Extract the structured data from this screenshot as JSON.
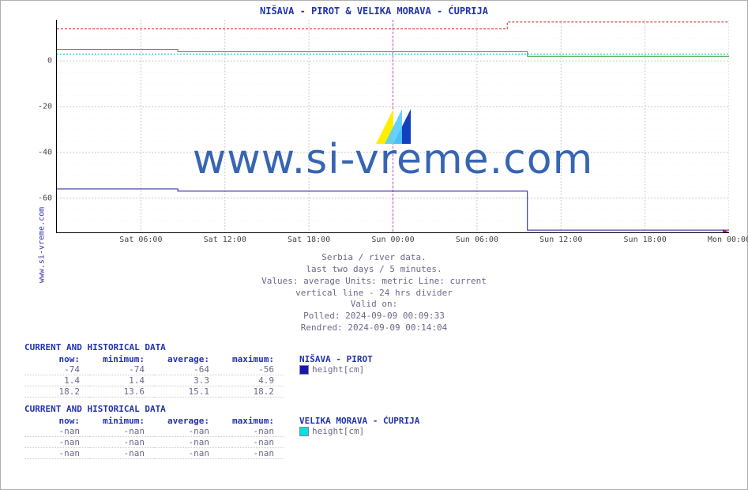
{
  "title": "NIŠAVA -  PIROT &  VELIKA MORAVA -  ĆUPRIJA",
  "source_label": "www.si-vreme.com",
  "watermark": "www.si-vreme.com",
  "chart": {
    "type": "line",
    "background_color": "#ffffff",
    "grid_color_major": "#cccccc",
    "grid_color_minor": "#e6e6e6",
    "grid_dash": "2,2",
    "axis_color": "#000000",
    "ylim": [
      -75,
      18
    ],
    "yticks": [
      -60,
      -40,
      -20,
      0
    ],
    "divider_x": 0.5,
    "divider_color": "#cc44cc",
    "arrow_color": "#cc2222",
    "xticks": [
      {
        "pos": 0.125,
        "label": "Sat 06:00"
      },
      {
        "pos": 0.25,
        "label": "Sat 12:00"
      },
      {
        "pos": 0.375,
        "label": "Sat 18:00"
      },
      {
        "pos": 0.5,
        "label": "Sun 00:00"
      },
      {
        "pos": 0.625,
        "label": "Sun 06:00"
      },
      {
        "pos": 0.75,
        "label": "Sun 12:00"
      },
      {
        "pos": 0.875,
        "label": "Sun 18:00"
      },
      {
        "pos": 1.0,
        "label": "Mon 00:00"
      }
    ],
    "series": [
      {
        "name": "red-upper",
        "color": "#cc2222",
        "width": 1,
        "dash": "3,2",
        "points": [
          [
            0,
            14
          ],
          [
            0.67,
            14
          ],
          [
            0.67,
            17
          ],
          [
            1.0,
            17
          ]
        ]
      },
      {
        "name": "green-mid",
        "color": "#2aa02a",
        "width": 1,
        "points": [
          [
            0,
            5
          ],
          [
            0.18,
            5
          ],
          [
            0.18,
            4
          ],
          [
            0.7,
            4
          ],
          [
            0.7,
            2
          ],
          [
            1.0,
            2
          ]
        ]
      },
      {
        "name": "cyan-mid",
        "color": "#00b7b7",
        "width": 1,
        "dash": "2,2",
        "points": [
          [
            0,
            3
          ],
          [
            1.0,
            3
          ]
        ]
      },
      {
        "name": "nisava-height",
        "color": "#1818aa",
        "width": 1,
        "points": [
          [
            0,
            -56
          ],
          [
            0.18,
            -56
          ],
          [
            0.18,
            -57
          ],
          [
            0.7,
            -57
          ],
          [
            0.7,
            -74
          ],
          [
            1.0,
            -74
          ]
        ]
      }
    ]
  },
  "description": {
    "l1": "Serbia / river data.",
    "l2": "last two days / 5 minutes.",
    "l3": "Values: average  Units: metric  Line: current",
    "l4": "vertical line - 24 hrs  divider",
    "l5": "Valid on:",
    "l6": "Polled: 2024-09-09 00:09:33",
    "l7": "Rendred: 2024-09-09 00:14:04"
  },
  "tables": [
    {
      "title": "CURRENT AND HISTORICAL DATA",
      "columns": [
        "now:",
        "minimum:",
        "average:",
        "maximum:"
      ],
      "series_name": "NIŠAVA -  PIROT",
      "rows": [
        {
          "cells": [
            "-74",
            "-74",
            "-64",
            "-56"
          ],
          "swatch": "#1818aa",
          "label": "height[cm]"
        },
        {
          "cells": [
            "1.4",
            "1.4",
            "3.3",
            "4.9"
          ]
        },
        {
          "cells": [
            "18.2",
            "13.6",
            "15.1",
            "18.2"
          ]
        }
      ]
    },
    {
      "title": "CURRENT AND HISTORICAL DATA",
      "columns": [
        "now:",
        "minimum:",
        "average:",
        "maximum:"
      ],
      "series_name": "VELIKA MORAVA -  ĆUPRIJA",
      "rows": [
        {
          "cells": [
            "-nan",
            "-nan",
            "-nan",
            "-nan"
          ],
          "swatch": "#00e0e0",
          "label": "height[cm]"
        },
        {
          "cells": [
            "-nan",
            "-nan",
            "-nan",
            "-nan"
          ]
        },
        {
          "cells": [
            "-nan",
            "-nan",
            "-nan",
            "-nan"
          ]
        }
      ]
    }
  ]
}
